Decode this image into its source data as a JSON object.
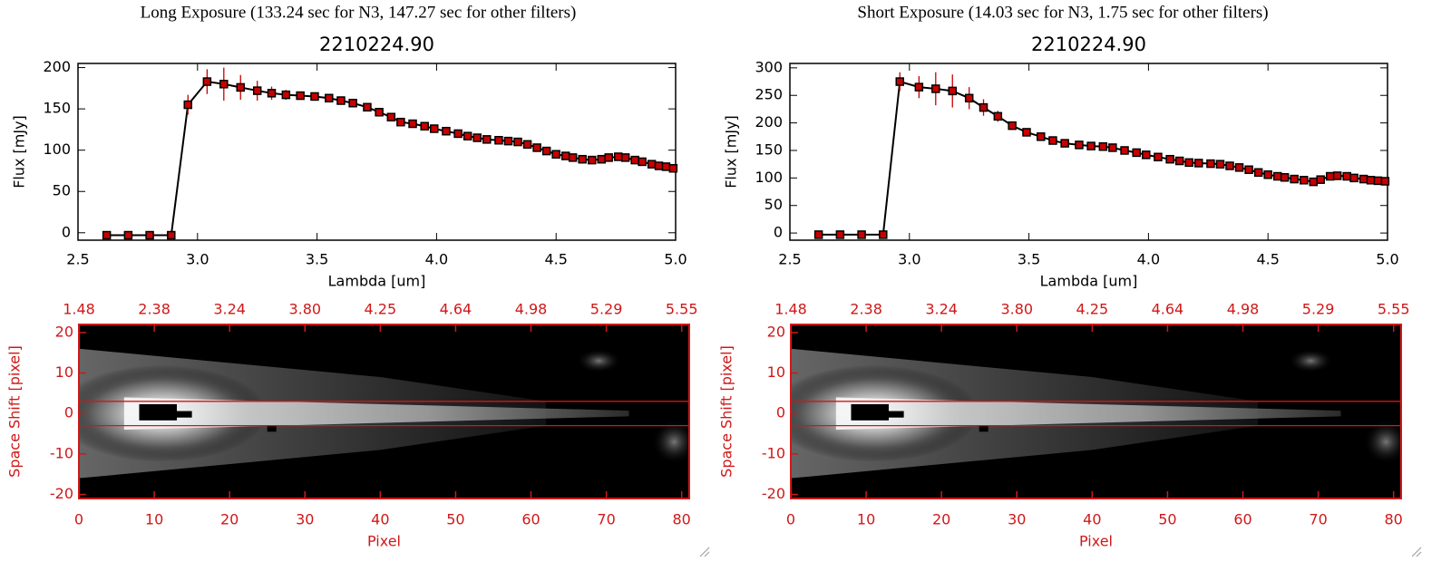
{
  "chart_data": [
    {
      "type": "line",
      "suptitle": "Long Exposure (133.24 sec for N3, 147.27 sec for other filters)",
      "title": "2210224.90",
      "xlabel": "Lambda [um]",
      "ylabel": "Flux [mJy]",
      "color": "#000000",
      "marker_color": "#c80000",
      "xlim": [
        2.5,
        5.0
      ],
      "ylim": [
        -9,
        205
      ],
      "xticks": [
        2.5,
        {
          "value": 3,
          "label": "3.0"
        },
        3.5,
        {
          "value": 4,
          "label": "4.0"
        },
        4.5,
        {
          "value": 5,
          "label": "5.0"
        }
      ],
      "yticks": [
        0,
        50,
        100,
        150,
        200
      ],
      "x": [
        2.62,
        2.71,
        2.8,
        2.89,
        2.96,
        3.04,
        3.11,
        3.18,
        3.25,
        3.31,
        3.37,
        3.43,
        3.49,
        3.55,
        3.6,
        3.65,
        3.71,
        3.76,
        3.81,
        3.85,
        3.9,
        3.95,
        3.99,
        4.04,
        4.09,
        4.13,
        4.17,
        4.21,
        4.26,
        4.3,
        4.34,
        4.38,
        4.42,
        4.46,
        4.5,
        4.54,
        4.57,
        4.61,
        4.65,
        4.69,
        4.72,
        4.76,
        4.79,
        4.83,
        4.86,
        4.9,
        4.93,
        4.96,
        4.99
      ],
      "values": [
        -3,
        -3,
        -3,
        -3,
        155,
        183,
        180,
        176,
        172,
        169,
        167,
        166,
        165,
        163,
        160,
        157,
        152,
        146,
        140,
        134,
        132,
        129,
        126,
        123,
        120,
        117,
        115,
        113,
        112,
        111,
        110,
        107,
        103,
        99,
        95,
        93,
        91,
        89,
        88,
        89,
        91,
        92,
        91,
        88,
        86,
        83,
        81,
        80,
        78
      ],
      "errors": [
        1,
        1,
        1,
        1,
        12,
        15,
        20,
        15,
        12,
        8,
        6,
        2,
        2,
        2,
        2,
        2,
        2,
        2,
        2,
        2,
        2,
        2,
        2,
        2,
        2,
        2,
        2,
        2,
        2,
        2,
        2,
        2,
        2,
        2,
        2,
        2,
        2,
        2,
        2,
        2,
        2,
        2,
        2,
        2,
        2,
        2,
        2,
        2,
        2
      ]
    },
    {
      "type": "image",
      "xlabel": "Pixel",
      "ylabel": "Space Shift [pixel]",
      "color": "#d01818",
      "xlim": [
        0,
        81
      ],
      "ylim": [
        -21,
        22
      ],
      "xticks": [
        0,
        10,
        20,
        30,
        40,
        50,
        60,
        70,
        80
      ],
      "yticks": [
        20,
        10,
        0,
        -10,
        -20
      ],
      "x2ticks": [
        {
          "value": 0,
          "label": "1.48"
        },
        {
          "value": 10,
          "label": "2.38"
        },
        {
          "value": 20,
          "label": "3.24"
        },
        {
          "value": 30,
          "label": "3.80"
        },
        {
          "value": 40,
          "label": "4.25"
        },
        {
          "value": 50,
          "label": "4.64"
        },
        {
          "value": 60,
          "label": "4.98"
        },
        {
          "value": 70,
          "label": "5.29"
        },
        {
          "value": 80,
          "label": "5.55"
        }
      ],
      "hlines": [
        3,
        -3
      ]
    },
    {
      "type": "line",
      "suptitle": "Short Exposure (14.03 sec for N3, 1.75 sec for other filters)",
      "title": "2210224.90",
      "xlabel": "Lambda [um]",
      "ylabel": "Flux [mJy]",
      "color": "#000000",
      "marker_color": "#c80000",
      "xlim": [
        2.5,
        5.0
      ],
      "ylim": [
        -13,
        308
      ],
      "xticks": [
        2.5,
        {
          "value": 3,
          "label": "3.0"
        },
        3.5,
        {
          "value": 4,
          "label": "4.0"
        },
        4.5,
        {
          "value": 5,
          "label": "5.0"
        }
      ],
      "yticks": [
        0,
        50,
        100,
        150,
        200,
        250,
        300
      ],
      "x": [
        2.62,
        2.71,
        2.8,
        2.89,
        2.96,
        3.04,
        3.11,
        3.18,
        3.25,
        3.31,
        3.37,
        3.43,
        3.49,
        3.55,
        3.6,
        3.65,
        3.71,
        3.76,
        3.81,
        3.85,
        3.9,
        3.95,
        3.99,
        4.04,
        4.09,
        4.13,
        4.17,
        4.21,
        4.26,
        4.3,
        4.34,
        4.38,
        4.42,
        4.46,
        4.5,
        4.54,
        4.57,
        4.61,
        4.65,
        4.69,
        4.72,
        4.76,
        4.79,
        4.83,
        4.86,
        4.9,
        4.93,
        4.96,
        4.99
      ],
      "values": [
        -3,
        -3,
        -3,
        -3,
        275,
        265,
        262,
        258,
        245,
        228,
        212,
        195,
        183,
        175,
        168,
        163,
        160,
        158,
        157,
        155,
        150,
        146,
        142,
        138,
        134,
        131,
        128,
        127,
        126,
        125,
        122,
        119,
        115,
        110,
        106,
        103,
        101,
        98,
        96,
        93,
        97,
        103,
        104,
        103,
        100,
        98,
        96,
        95,
        94
      ],
      "errors": [
        1,
        1,
        1,
        1,
        17,
        20,
        30,
        30,
        20,
        15,
        10,
        3,
        3,
        3,
        3,
        3,
        3,
        3,
        3,
        3,
        3,
        3,
        3,
        3,
        3,
        3,
        3,
        3,
        3,
        3,
        3,
        3,
        3,
        3,
        3,
        3,
        3,
        3,
        3,
        3,
        3,
        3,
        3,
        3,
        3,
        3,
        3,
        3,
        3
      ]
    },
    {
      "type": "image",
      "xlabel": "Pixel",
      "ylabel": "Space Shift [pixel]",
      "color": "#d01818",
      "xlim": [
        0,
        81
      ],
      "ylim": [
        -21,
        22
      ],
      "xticks": [
        0,
        10,
        20,
        30,
        40,
        50,
        60,
        70,
        80
      ],
      "yticks": [
        20,
        10,
        0,
        -10,
        -20
      ],
      "x2ticks": [
        {
          "value": 0,
          "label": "1.48"
        },
        {
          "value": 10,
          "label": "2.38"
        },
        {
          "value": 20,
          "label": "3.24"
        },
        {
          "value": 30,
          "label": "3.80"
        },
        {
          "value": 40,
          "label": "4.25"
        },
        {
          "value": 50,
          "label": "4.64"
        },
        {
          "value": 60,
          "label": "4.98"
        },
        {
          "value": 70,
          "label": "5.29"
        },
        {
          "value": 80,
          "label": "5.55"
        }
      ],
      "hlines": [
        3,
        -3
      ]
    }
  ]
}
